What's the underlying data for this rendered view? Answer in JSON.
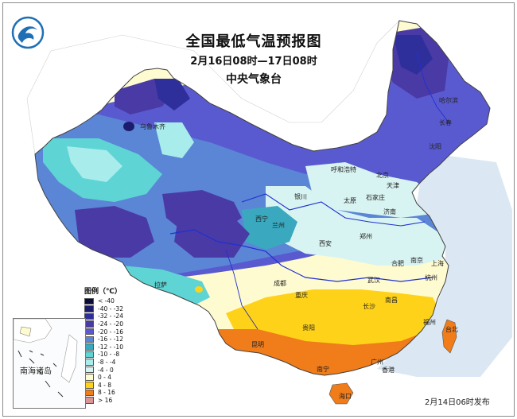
{
  "title": "全国最低气温预报图",
  "subtitle": "2月16日08时—17日08时",
  "issuer": "中央气象台",
  "release": "2月14日06时发布",
  "legend": {
    "title": "图例（℃）",
    "items": [
      {
        "label": "< -40",
        "color": "#0b0b3a"
      },
      {
        "label": "-40 - -32",
        "color": "#1c1c6e"
      },
      {
        "label": "-32 - -24",
        "color": "#2f2f9c"
      },
      {
        "label": "-24 - -20",
        "color": "#4a3aa6"
      },
      {
        "label": "-20 - -16",
        "color": "#5a5ad0"
      },
      {
        "label": "-16 - -12",
        "color": "#5b86d6"
      },
      {
        "label": "-12 - -10",
        "color": "#3aa9bf"
      },
      {
        "label": "-10 - -8",
        "color": "#5fd4d4"
      },
      {
        "label": "-8 - -4",
        "color": "#a8ecec"
      },
      {
        "label": "-4 - 0",
        "color": "#d8f4f2"
      },
      {
        "label": "0 - 4",
        "color": "#fffbd0"
      },
      {
        "label": "4 - 8",
        "color": "#ffd21a"
      },
      {
        "label": "8 - 16",
        "color": "#f07c1a"
      },
      {
        "label": "> 16",
        "color": "#d89696"
      }
    ]
  },
  "inset": {
    "label": "南海诸岛"
  },
  "cities": {
    "urumqi": "乌鲁木齐",
    "harbin": "哈尔滨",
    "changchun": "长春",
    "shenyang": "沈阳",
    "hohhot": "呼和浩特",
    "beijing": "北京",
    "tianjin": "天津",
    "yinchuan": "银川",
    "taiyuan": "太原",
    "shijiazhuang": "石家庄",
    "jinan": "济南",
    "xining": "西宁",
    "lanzhou": "兰州",
    "zhengzhou": "郑州",
    "xian": "西安",
    "hefei": "合肥",
    "nanjing": "南京",
    "shanghai": "上海",
    "lhasa": "拉萨",
    "chengdu": "成都",
    "wuhan": "武汉",
    "hangzhou": "杭州",
    "chongqing": "重庆",
    "changsha": "长沙",
    "nanchang": "南昌",
    "guiyang": "贵阳",
    "fuzhou": "福州",
    "taipei": "台北",
    "kunming": "昆明",
    "nanning": "南宁",
    "guangzhou": "广州",
    "hongkong": "香港",
    "haikou": "海口"
  }
}
